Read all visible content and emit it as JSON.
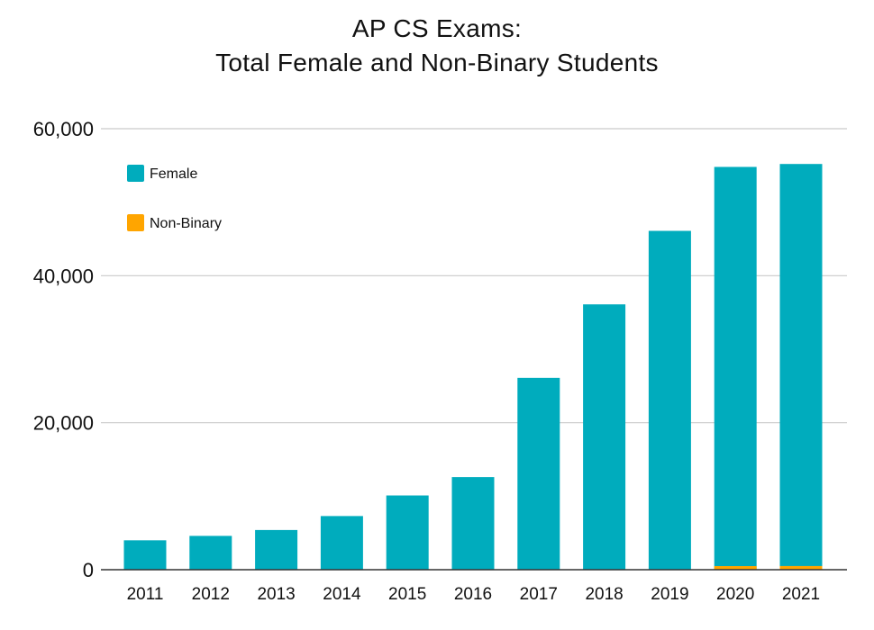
{
  "chart_data": {
    "type": "bar",
    "stacked": true,
    "title": [
      "AP CS Exams:",
      "Total Female and Non-Binary Students"
    ],
    "xlabel": "",
    "ylabel": "",
    "categories": [
      "2011",
      "2012",
      "2013",
      "2014",
      "2015",
      "2016",
      "2017",
      "2018",
      "2019",
      "2020",
      "2021"
    ],
    "series": [
      {
        "name": "Female",
        "color": "#00acbd",
        "values": [
          4000,
          4600,
          5400,
          7300,
          10100,
          12600,
          26100,
          36100,
          46100,
          54400,
          54700
        ]
      },
      {
        "name": "Non-Binary",
        "color": "#ffa500",
        "values": [
          0,
          0,
          0,
          0,
          0,
          0,
          0,
          0,
          0,
          400,
          500
        ]
      }
    ],
    "ylim": [
      0,
      60000
    ],
    "yticks": [
      0,
      20000,
      40000,
      60000
    ],
    "ytick_labels": [
      "0",
      "20,000",
      "40,000",
      "60,000"
    ],
    "grid": true,
    "legend_position": "top-left"
  }
}
